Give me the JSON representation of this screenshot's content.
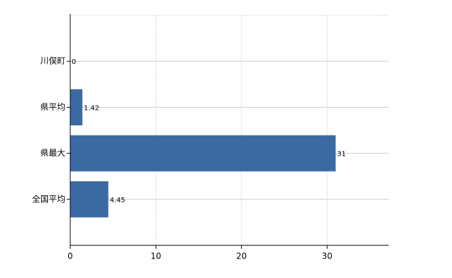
{
  "chart_data": {
    "type": "hbar",
    "categories": [
      "川俣町",
      "県平均",
      "県最大",
      "全国平均"
    ],
    "values": [
      0,
      1.42,
      31,
      4.45
    ],
    "color": "#3b6aa3",
    "xlim": [
      0,
      37.2
    ],
    "xticks": [
      0,
      10,
      20,
      30
    ],
    "grid": true
  }
}
